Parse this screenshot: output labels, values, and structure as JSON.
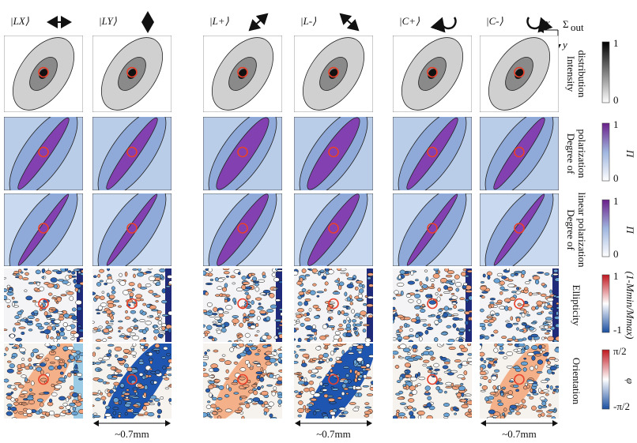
{
  "columns": [
    {
      "label": "|LX⟩"
    },
    {
      "label": "|LY⟩"
    },
    {
      "label": "|L+⟩"
    },
    {
      "label": "|L-⟩"
    },
    {
      "label": "|C+⟩"
    },
    {
      "label": "|C-⟩"
    }
  ],
  "axes": {
    "x": "x",
    "y": "y",
    "plane": "Σ",
    "plane_sub": "out"
  },
  "rows": [
    {
      "label": [
        "Intensity",
        "distribution"
      ],
      "ticks": {
        "top": "1",
        "bottom": "0"
      }
    },
    {
      "label": [
        "Degree of",
        "polarization"
      ],
      "symbol": "Π",
      "ticks": {
        "top": "1",
        "bottom": "0"
      }
    },
    {
      "label": [
        "Degree of",
        "linear polarization"
      ],
      "symbol": "Π",
      "ticks": {
        "top": "1",
        "bottom": "0"
      }
    },
    {
      "label": [
        "Ellipticity"
      ],
      "symbol": "(1-Mmin/Mmax)",
      "ticks": {
        "top": "1",
        "bottom": "-1"
      }
    },
    {
      "label": [
        "Orientation"
      ],
      "symbol": "φ",
      "ticks": {
        "top": "π/2",
        "bottom": "-π/2"
      }
    }
  ],
  "scale_bars": [
    "~0.7mm",
    "~0.7mm",
    "~0.7mm"
  ]
}
